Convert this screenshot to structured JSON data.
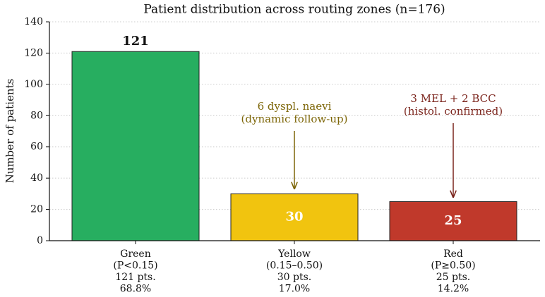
{
  "chart_data": {
    "type": "bar",
    "title": "Patient distribution across routing zones (n=176)",
    "y_label": "Number of patients",
    "categories": [
      [
        "Green",
        "(P<0.15)",
        "121 pts.",
        "68.8%"
      ],
      [
        "Yellow",
        "(0.15–0.50)",
        "30 pts.",
        "17.0%"
      ],
      [
        "Red",
        "(P≥0.50)",
        "25 pts.",
        "14.2%"
      ]
    ],
    "values": [
      121,
      30,
      25
    ],
    "colors": [
      "#27ae60",
      "#f1c40f",
      "#c0392b"
    ],
    "ylim": [
      0,
      140
    ],
    "yticks": [
      0,
      20,
      40,
      60,
      80,
      100,
      120,
      140
    ],
    "grid": true,
    "annotations": [
      null,
      {
        "text": [
          "6 dyspl. naevi",
          "(dynamic follow-up)"
        ],
        "color": "#7d6608"
      },
      {
        "text": [
          "3 MEL + 2 BCC",
          "(histol. confirmed)"
        ],
        "color": "#7b241c"
      }
    ]
  }
}
